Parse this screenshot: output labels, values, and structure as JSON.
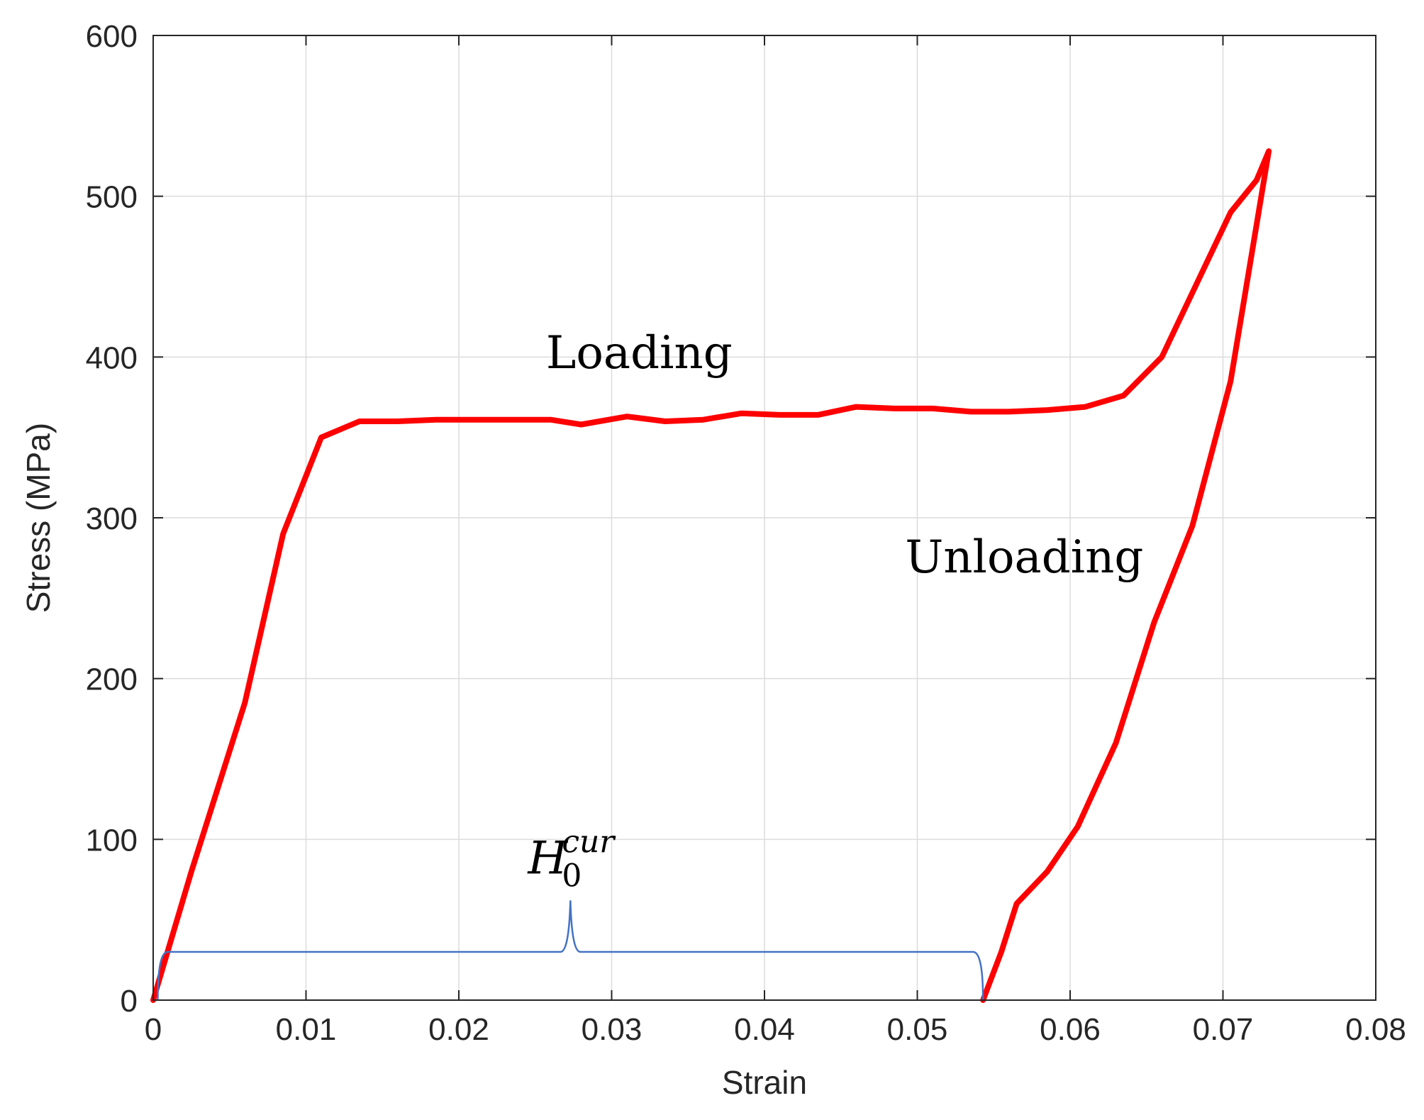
{
  "chart_data": {
    "type": "line",
    "xlabel": "Strain",
    "ylabel": "Stress (MPa)",
    "xlim": [
      0,
      0.08
    ],
    "ylim": [
      0,
      600
    ],
    "xticks": [
      0,
      0.01,
      0.02,
      0.03,
      0.04,
      0.05,
      0.06,
      0.07,
      0.08
    ],
    "xtick_labels": [
      "0",
      "0.01",
      "0.02",
      "0.03",
      "0.04",
      "0.05",
      "0.06",
      "0.07",
      "0.08"
    ],
    "yticks": [
      0,
      100,
      200,
      300,
      400,
      500,
      600
    ],
    "ytick_labels": [
      "0",
      "100",
      "200",
      "300",
      "400",
      "500",
      "600"
    ],
    "grid": true,
    "series": [
      {
        "color": "#ff0000",
        "x": [
          0,
          0.0025,
          0.006,
          0.0085,
          0.011,
          0.0135,
          0.016,
          0.0185,
          0.021,
          0.0235,
          0.026,
          0.028,
          0.031,
          0.0335,
          0.036,
          0.0385,
          0.041,
          0.0435,
          0.046,
          0.0485,
          0.051,
          0.0535,
          0.056,
          0.0585,
          0.061,
          0.0635,
          0.066,
          0.068,
          0.0705,
          0.0722,
          0.073
        ],
        "y": [
          0,
          80,
          185,
          290,
          350,
          360,
          360,
          361,
          361,
          361,
          361,
          358,
          363,
          360,
          361,
          365,
          364,
          364,
          369,
          368,
          368,
          366,
          366,
          367,
          369,
          376,
          400,
          440,
          490,
          510,
          528
        ]
      },
      {
        "color": "#ff0000",
        "x": [
          0.073,
          0.0705,
          0.068,
          0.0655,
          0.063,
          0.0605,
          0.0585,
          0.0565,
          0.0555,
          0.0543
        ],
        "y": [
          528,
          385,
          295,
          235,
          160,
          108,
          80,
          60,
          30,
          0
        ]
      }
    ],
    "annotations": [
      {
        "text": "Loading",
        "x": 0.0318,
        "y": 393
      },
      {
        "text": "Unloading",
        "x": 0.057,
        "y": 266
      }
    ],
    "brace": {
      "color": "#4472c4",
      "x_start": 0.0003,
      "x_end": 0.0543,
      "y_level": 30,
      "y_tip": 62,
      "label": {
        "base": "H",
        "subscript": "0",
        "superscript": "cur"
      }
    }
  }
}
